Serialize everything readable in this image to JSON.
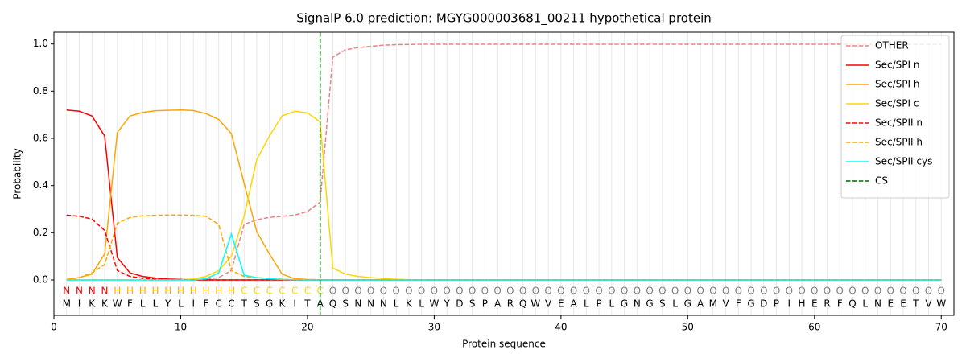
{
  "chart_data": {
    "type": "line",
    "title": "SignalP 6.0 prediction: MGYG000003681_00211 hypothetical protein",
    "x_label": "Protein sequence",
    "y_label": "Probability",
    "xlim": [
      0,
      71
    ],
    "ylim": [
      -0.15,
      1.05
    ],
    "xticks": [
      0,
      10,
      20,
      30,
      40,
      50,
      60,
      70
    ],
    "yticks": [
      {
        "value": 0,
        "label": "0.0"
      },
      {
        "value": 0.2,
        "label": "0.2"
      },
      {
        "value": 0.4,
        "label": "0.4"
      },
      {
        "value": 0.6,
        "label": "0.6"
      },
      {
        "value": 0.8,
        "label": "0.8"
      },
      {
        "value": 1,
        "label": "1.0"
      }
    ],
    "legend": "upper right",
    "x": [
      1,
      2,
      3,
      4,
      5,
      6,
      7,
      8,
      9,
      10,
      11,
      12,
      13,
      14,
      15,
      16,
      17,
      18,
      19,
      20,
      21,
      22,
      23,
      24,
      25,
      26,
      27,
      28,
      29,
      30,
      31,
      32,
      33,
      34,
      35,
      36,
      37,
      38,
      39,
      40,
      41,
      42,
      43,
      44,
      45,
      46,
      47,
      48,
      49,
      50,
      51,
      52,
      53,
      54,
      55,
      56,
      57,
      58,
      59,
      60,
      61,
      62,
      63,
      64,
      65,
      66,
      67,
      68,
      69,
      70
    ],
    "sequence": [
      "M",
      "I",
      "K",
      "K",
      "W",
      "F",
      "L",
      "L",
      "Y",
      "L",
      "I",
      "F",
      "C",
      "C",
      "T",
      "S",
      "G",
      "K",
      "I",
      "T",
      "A",
      "Q",
      "S",
      "N",
      "N",
      "N",
      "L",
      "K",
      "L",
      "W",
      "Y",
      "D",
      "S",
      "P",
      "A",
      "R",
      "Q",
      "W",
      "V",
      "E",
      "A",
      "L",
      "P",
      "L",
      "G",
      "N",
      "G",
      "S",
      "L",
      "G",
      "A",
      "M",
      "V",
      "F",
      "G",
      "D",
      "P",
      "I",
      "H",
      "E",
      "R",
      "F",
      "Q",
      "L",
      "N",
      "E",
      "E",
      "T",
      "V",
      "W"
    ],
    "residue_labels": [
      "N",
      "N",
      "N",
      "N",
      "H",
      "H",
      "H",
      "H",
      "H",
      "H",
      "H",
      "H",
      "H",
      "H",
      "C",
      "C",
      "C",
      "C",
      "C",
      "C",
      "C",
      "O",
      "O",
      "O",
      "O",
      "O",
      "O",
      "O",
      "O",
      "O",
      "O",
      "O",
      "O",
      "O",
      "O",
      "O",
      "O",
      "O",
      "O",
      "O",
      "O",
      "O",
      "O",
      "O",
      "O",
      "O",
      "O",
      "O",
      "O",
      "O",
      "O",
      "O",
      "O",
      "O",
      "O",
      "O",
      "O",
      "O",
      "O",
      "O",
      "O",
      "O",
      "O",
      "O",
      "O",
      "O",
      "O",
      "O",
      "O",
      "O"
    ],
    "label_colors": {
      "N": "#ff0000",
      "H": "#ffa500",
      "C": "#ffd700",
      "O": "#808080"
    },
    "series": [
      {
        "name": "OTHER",
        "color": "#f08080",
        "linestyle": "dashed",
        "values": [
          0,
          0,
          0,
          0,
          0,
          0,
          0,
          0,
          0,
          0,
          0.001,
          0.002,
          0.01,
          0.04,
          0.235,
          0.255,
          0.265,
          0.27,
          0.275,
          0.29,
          0.33,
          0.945,
          0.975,
          0.985,
          0.99,
          0.995,
          0.997,
          0.998,
          0.999,
          0.999,
          0.999,
          0.999,
          0.999,
          0.999,
          0.999,
          0.999,
          0.999,
          0.999,
          0.999,
          0.999,
          0.999,
          0.999,
          0.999,
          0.999,
          0.999,
          0.999,
          0.999,
          0.999,
          0.999,
          0.999,
          0.999,
          0.999,
          0.999,
          0.999,
          0.999,
          0.999,
          0.999,
          0.999,
          0.999,
          0.999,
          0.999,
          0.999,
          0.999,
          0.999,
          0.999,
          0.999,
          0.999,
          0.999,
          0.999,
          0.999
        ]
      },
      {
        "name": "Sec/SPI n",
        "color": "#ff0000",
        "linestyle": "solid",
        "values": [
          0.72,
          0.715,
          0.695,
          0.61,
          0.095,
          0.03,
          0.015,
          0.008,
          0.004,
          0.002,
          0,
          0,
          0,
          0,
          0,
          0,
          0,
          0,
          0,
          0,
          0,
          0,
          0,
          0,
          0,
          0,
          0,
          0,
          0,
          0,
          0,
          0,
          0,
          0,
          0,
          0,
          0,
          0,
          0,
          0,
          0,
          0,
          0,
          0,
          0,
          0,
          0,
          0,
          0,
          0,
          0,
          0,
          0,
          0,
          0,
          0,
          0,
          0,
          0,
          0,
          0,
          0,
          0,
          0,
          0,
          0,
          0,
          0,
          0,
          0
        ]
      },
      {
        "name": "Sec/SPI h",
        "color": "#ffa500",
        "linestyle": "solid",
        "values": [
          0.002,
          0.01,
          0.025,
          0.11,
          0.625,
          0.695,
          0.71,
          0.717,
          0.719,
          0.72,
          0.718,
          0.705,
          0.68,
          0.62,
          0.41,
          0.205,
          0.11,
          0.025,
          0.005,
          0.002,
          0.001,
          0,
          0,
          0,
          0,
          0,
          0,
          0,
          0,
          0,
          0,
          0,
          0,
          0,
          0,
          0,
          0,
          0,
          0,
          0,
          0,
          0,
          0,
          0,
          0,
          0,
          0,
          0,
          0,
          0,
          0,
          0,
          0,
          0,
          0,
          0,
          0,
          0,
          0,
          0,
          0,
          0,
          0,
          0,
          0,
          0,
          0,
          0,
          0,
          0
        ]
      },
      {
        "name": "Sec/SPI c",
        "color": "#ffd700",
        "linestyle": "solid",
        "values": [
          0,
          0,
          0,
          0,
          0,
          0,
          0,
          0,
          0,
          0.001,
          0.004,
          0.015,
          0.04,
          0.1,
          0.27,
          0.51,
          0.61,
          0.695,
          0.715,
          0.708,
          0.67,
          0.05,
          0.025,
          0.015,
          0.01,
          0.006,
          0.003,
          0.001,
          0,
          0,
          0,
          0,
          0,
          0,
          0,
          0,
          0,
          0,
          0,
          0,
          0,
          0,
          0,
          0,
          0,
          0,
          0,
          0,
          0,
          0,
          0,
          0,
          0,
          0,
          0,
          0,
          0,
          0,
          0,
          0,
          0,
          0,
          0,
          0,
          0,
          0,
          0,
          0,
          0,
          0
        ]
      },
      {
        "name": "Sec/SPII n",
        "color": "#ff0000",
        "linestyle": "dashed",
        "values": [
          0.275,
          0.27,
          0.258,
          0.21,
          0.04,
          0.015,
          0.007,
          0.004,
          0.002,
          0.001,
          0,
          0,
          0,
          0,
          0,
          0,
          0,
          0,
          0,
          0,
          0,
          0,
          0,
          0,
          0,
          0,
          0,
          0,
          0,
          0,
          0,
          0,
          0,
          0,
          0,
          0,
          0,
          0,
          0,
          0,
          0,
          0,
          0,
          0,
          0,
          0,
          0,
          0,
          0,
          0,
          0,
          0,
          0,
          0,
          0,
          0,
          0,
          0,
          0,
          0,
          0,
          0,
          0,
          0,
          0,
          0,
          0,
          0,
          0,
          0
        ]
      },
      {
        "name": "Sec/SPII h",
        "color": "#ffa500",
        "linestyle": "dashed",
        "values": [
          0.001,
          0.01,
          0.03,
          0.065,
          0.24,
          0.265,
          0.272,
          0.274,
          0.275,
          0.275,
          0.274,
          0.27,
          0.235,
          0.04,
          0.015,
          0.01,
          0.006,
          0.003,
          0.001,
          0,
          0,
          0,
          0,
          0,
          0,
          0,
          0,
          0,
          0,
          0,
          0,
          0,
          0,
          0,
          0,
          0,
          0,
          0,
          0,
          0,
          0,
          0,
          0,
          0,
          0,
          0,
          0,
          0,
          0,
          0,
          0,
          0,
          0,
          0,
          0,
          0,
          0,
          0,
          0,
          0,
          0,
          0,
          0,
          0,
          0,
          0,
          0,
          0,
          0,
          0
        ]
      },
      {
        "name": "Sec/SPII cys",
        "color": "#00ffff",
        "linestyle": "solid",
        "values": [
          0,
          0,
          0,
          0,
          0,
          0,
          0,
          0,
          0,
          0,
          0,
          0.005,
          0.03,
          0.195,
          0.02,
          0.01,
          0.005,
          0.002,
          0.001,
          0,
          0,
          0,
          0,
          0,
          0,
          0,
          0,
          0,
          0,
          0,
          0,
          0,
          0,
          0,
          0,
          0,
          0,
          0,
          0,
          0,
          0,
          0,
          0,
          0,
          0,
          0,
          0,
          0,
          0,
          0,
          0,
          0,
          0,
          0,
          0,
          0,
          0,
          0,
          0,
          0,
          0,
          0,
          0,
          0,
          0,
          0,
          0,
          0,
          0,
          0
        ]
      }
    ],
    "cs": {
      "name": "CS",
      "x": 21,
      "color": "#006400"
    }
  }
}
